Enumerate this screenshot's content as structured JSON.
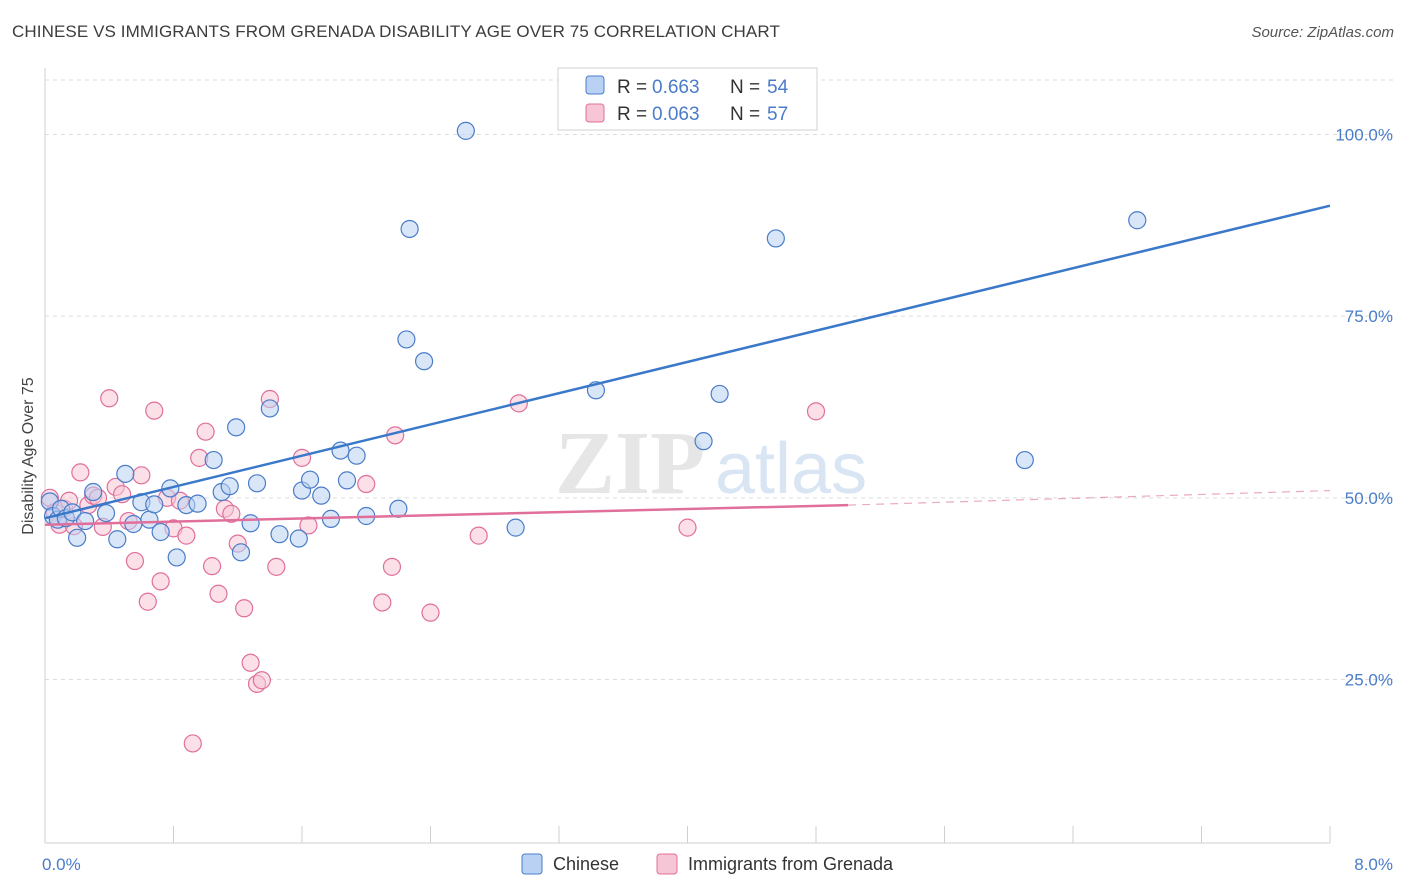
{
  "title": "CHINESE VS IMMIGRANTS FROM GRENADA DISABILITY AGE OVER 75 CORRELATION CHART",
  "source": "Source: ZipAtlas.com",
  "watermark": {
    "zip": "ZIP",
    "atlas": "atlas"
  },
  "legend": {
    "r_label": "R =",
    "n_label": "N =",
    "series": [
      {
        "r": "0.663",
        "n": "54"
      },
      {
        "r": "0.063",
        "n": "57"
      }
    ]
  },
  "chart_data": {
    "type": "scatter",
    "title": "CHINESE VS IMMIGRANTS FROM GRENADA DISABILITY AGE OVER 75 CORRELATION CHART",
    "xlabel": "",
    "ylabel": "Disability Age Over 75",
    "xlim": [
      0,
      8
    ],
    "ylim": [
      2.5,
      107.5
    ],
    "x_tick_labels": [
      "0.0%",
      "8.0%"
    ],
    "y_ticks": [
      25,
      50,
      75,
      100
    ],
    "y_tick_labels": [
      "25.0%",
      "50.0%",
      "75.0%",
      "100.0%"
    ],
    "colors": {
      "blue": "#4a7cc9",
      "blue_fill": "#b9d1f3",
      "pink": "#e06f9b",
      "pink_fill": "#f7c6d6",
      "line_blue": "#3a78c9",
      "line_pink": "#e06f9b"
    },
    "series": [
      {
        "name": "Chinese",
        "color": "#4a7cc9",
        "trend": {
          "x": [
            0.0,
            8.0
          ],
          "y": [
            47.2,
            90.2
          ]
        },
        "points": [
          [
            0.03,
            49.5
          ],
          [
            0.05,
            47.5
          ],
          [
            0.08,
            47.0
          ],
          [
            0.1,
            48.5
          ],
          [
            0.13,
            47.2
          ],
          [
            0.17,
            48.0
          ],
          [
            0.2,
            44.5
          ],
          [
            0.25,
            46.8
          ],
          [
            0.3,
            50.8
          ],
          [
            0.38,
            47.9
          ],
          [
            0.45,
            44.3
          ],
          [
            0.5,
            53.3
          ],
          [
            0.55,
            46.4
          ],
          [
            0.6,
            49.4
          ],
          [
            0.65,
            47.0
          ],
          [
            0.68,
            49.1
          ],
          [
            0.72,
            45.3
          ],
          [
            0.78,
            51.3
          ],
          [
            0.82,
            41.8
          ],
          [
            0.88,
            49.0
          ],
          [
            0.95,
            49.2
          ],
          [
            1.05,
            55.2
          ],
          [
            1.1,
            50.8
          ],
          [
            1.15,
            51.6
          ],
          [
            1.19,
            59.7
          ],
          [
            1.22,
            42.5
          ],
          [
            1.28,
            46.5
          ],
          [
            1.32,
            52.0
          ],
          [
            1.4,
            62.3
          ],
          [
            1.46,
            45.0
          ],
          [
            1.58,
            44.4
          ],
          [
            1.6,
            51.0
          ],
          [
            1.65,
            52.5
          ],
          [
            1.72,
            50.3
          ],
          [
            1.78,
            47.1
          ],
          [
            1.84,
            56.5
          ],
          [
            1.88,
            52.4
          ],
          [
            1.94,
            55.8
          ],
          [
            2.0,
            47.5
          ],
          [
            2.2,
            48.5
          ],
          [
            2.25,
            71.8
          ],
          [
            2.27,
            87.0
          ],
          [
            2.36,
            68.8
          ],
          [
            2.62,
            100.5
          ],
          [
            2.93,
            45.9
          ],
          [
            3.43,
            64.8
          ],
          [
            4.1,
            57.8
          ],
          [
            4.2,
            64.3
          ],
          [
            4.55,
            85.7
          ],
          [
            6.1,
            55.2
          ],
          [
            6.8,
            88.2
          ]
        ]
      },
      {
        "name": "Immigrants from Grenada",
        "color": "#e06f9b",
        "trend": {
          "x": [
            0.0,
            5.0
          ],
          "y": [
            46.3,
            49.0
          ]
        },
        "dash": {
          "x": [
            5.0,
            8.0
          ],
          "y": [
            49.0,
            51.0
          ]
        },
        "points": [
          [
            0.03,
            50.0
          ],
          [
            0.06,
            48.0
          ],
          [
            0.09,
            46.3
          ],
          [
            0.12,
            48.5
          ],
          [
            0.15,
            49.6
          ],
          [
            0.18,
            46.1
          ],
          [
            0.22,
            53.5
          ],
          [
            0.27,
            49.0
          ],
          [
            0.3,
            50.3
          ],
          [
            0.33,
            50.0
          ],
          [
            0.36,
            46.0
          ],
          [
            0.4,
            63.7
          ],
          [
            0.44,
            51.5
          ],
          [
            0.48,
            50.5
          ],
          [
            0.52,
            46.8
          ],
          [
            0.56,
            41.3
          ],
          [
            0.6,
            53.1
          ],
          [
            0.64,
            35.7
          ],
          [
            0.68,
            62.0
          ],
          [
            0.72,
            38.5
          ],
          [
            0.76,
            50.0
          ],
          [
            0.8,
            45.8
          ],
          [
            0.84,
            49.6
          ],
          [
            0.88,
            44.8
          ],
          [
            0.92,
            16.2
          ],
          [
            0.96,
            55.5
          ],
          [
            1.0,
            59.1
          ],
          [
            1.04,
            40.6
          ],
          [
            1.08,
            36.8
          ],
          [
            1.12,
            48.5
          ],
          [
            1.16,
            47.8
          ],
          [
            1.2,
            43.7
          ],
          [
            1.24,
            34.8
          ],
          [
            1.28,
            27.3
          ],
          [
            1.32,
            24.4
          ],
          [
            1.35,
            24.9
          ],
          [
            1.4,
            63.6
          ],
          [
            1.44,
            40.5
          ],
          [
            1.6,
            55.5
          ],
          [
            1.64,
            46.2
          ],
          [
            2.0,
            51.9
          ],
          [
            2.1,
            35.6
          ],
          [
            2.16,
            40.5
          ],
          [
            2.18,
            58.6
          ],
          [
            2.4,
            34.2
          ],
          [
            2.7,
            44.8
          ],
          [
            2.95,
            63.0
          ],
          [
            4.0,
            45.9
          ],
          [
            4.8,
            61.9
          ]
        ]
      }
    ]
  },
  "bottom_legend": [
    {
      "label": "Chinese",
      "color": "#b9d1f3",
      "stroke": "#4a7cc9"
    },
    {
      "label": "Immigrants from Grenada",
      "color": "#f7c6d6",
      "stroke": "#e06f9b"
    }
  ]
}
